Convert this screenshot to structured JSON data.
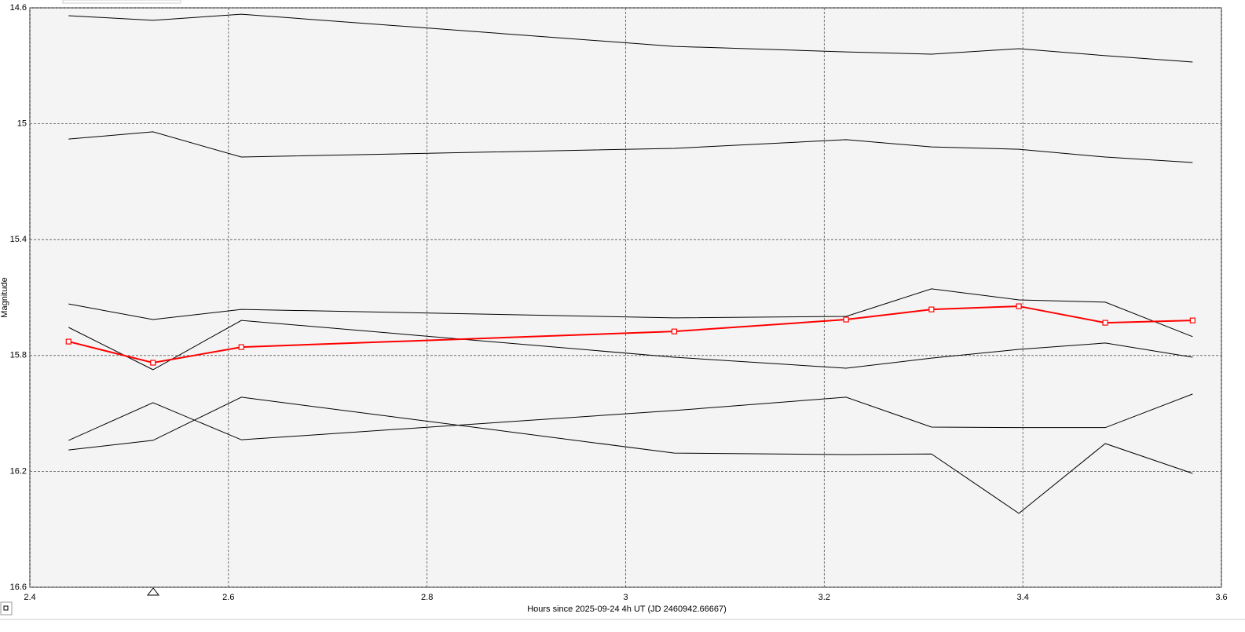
{
  "chart_data": {
    "type": "line",
    "x_label": "Hours since 2025-09-24 4h UT (JD 2460942.66667)",
    "y_label": "Magnitude",
    "xlim": [
      2.4,
      3.6
    ],
    "xticks": [
      2.4,
      2.6,
      2.8,
      3,
      3.2,
      3.4,
      3.6
    ],
    "ylim": [
      14.6,
      16.6
    ],
    "yticks": [
      14.6,
      15,
      15.4,
      15.8,
      16.2,
      16.6
    ],
    "y_inverted": true,
    "grid": true,
    "x": [
      2.439,
      2.524,
      2.613,
      3.049,
      3.222,
      3.308,
      3.396,
      3.483,
      3.571
    ],
    "series": [
      {
        "color": "#000000",
        "values": [
          14.627,
          14.643,
          14.622,
          14.733,
          14.752,
          14.76,
          14.741,
          14.765,
          14.787
        ]
      },
      {
        "color": "#000000",
        "values": [
          15.053,
          15.028,
          15.115,
          15.085,
          15.055,
          15.08,
          15.088,
          15.115,
          15.134
        ]
      },
      {
        "color": "#000000",
        "values": [
          15.622,
          15.676,
          15.641,
          15.67,
          15.665,
          15.57,
          15.608,
          15.616,
          15.735
        ]
      },
      {
        "color": "#000000",
        "values": [
          15.703,
          15.849,
          15.679,
          15.806,
          15.844,
          15.809,
          15.779,
          15.757,
          15.806
        ]
      },
      {
        "color": "#000000",
        "values": [
          16.093,
          15.963,
          16.091,
          15.99,
          15.944,
          16.047,
          16.049,
          16.049,
          15.933
        ]
      },
      {
        "color": "#000000",
        "values": [
          16.126,
          16.093,
          15.944,
          16.137,
          16.142,
          16.14,
          16.345,
          16.104,
          16.207
        ]
      },
      {
        "color": "#ff0000",
        "markers": true,
        "values": [
          15.752,
          15.825,
          15.771,
          15.717,
          15.676,
          15.641,
          15.63,
          15.687,
          15.679
        ]
      }
    ]
  }
}
